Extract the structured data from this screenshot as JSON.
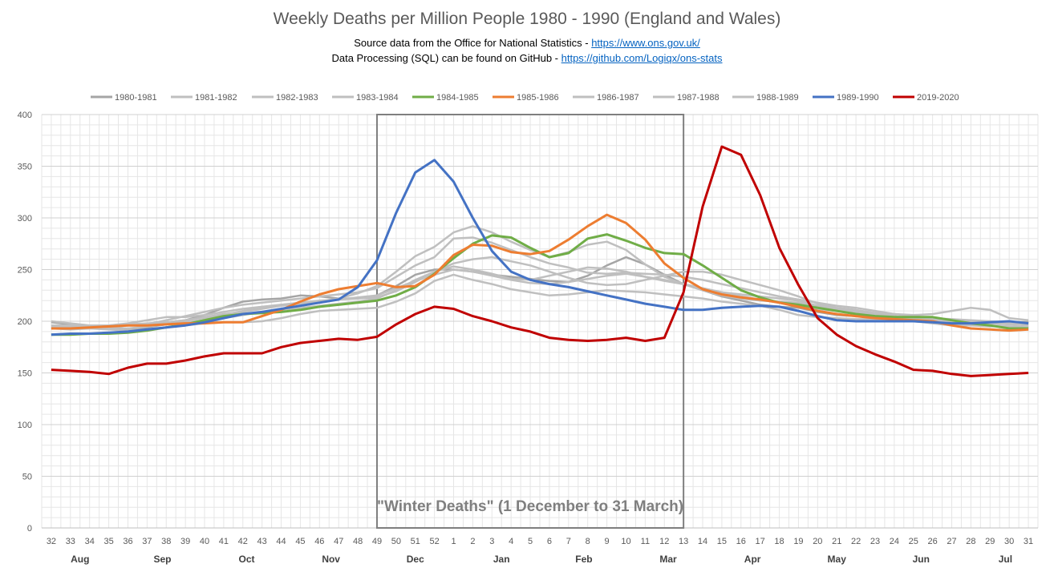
{
  "chart_data": {
    "type": "line",
    "title": "Weekly Deaths per Million People 1980 - 1990 (England and Wales)",
    "subtitle_lines": [
      {
        "text": "Source data from the Office for National Statistics - ",
        "link": "https://www.ons.gov.uk/"
      },
      {
        "text": "Data Processing (SQL) can be found on GitHub - ",
        "link": "https://github.com/Logiqx/ons-stats"
      }
    ],
    "x": [
      32,
      33,
      34,
      35,
      36,
      37,
      38,
      39,
      40,
      41,
      42,
      43,
      44,
      45,
      46,
      47,
      48,
      49,
      50,
      51,
      52,
      1,
      2,
      3,
      4,
      5,
      6,
      7,
      8,
      9,
      10,
      11,
      12,
      13,
      14,
      15,
      16,
      17,
      18,
      19,
      20,
      21,
      22,
      23,
      24,
      25,
      26,
      27,
      28,
      29,
      30,
      31
    ],
    "months": [
      {
        "label": "Aug",
        "at": 33.5
      },
      {
        "label": "Sep",
        "at": 37.8
      },
      {
        "label": "Oct",
        "at": 42.2
      },
      {
        "label": "Nov",
        "at": 46.6
      },
      {
        "label": "Dec",
        "at": 51.0
      },
      {
        "label": "Jan",
        "at": 55.5
      },
      {
        "label": "Feb",
        "at": 59.8
      },
      {
        "label": "Mar",
        "at": 64.2
      },
      {
        "label": "Apr",
        "at": 68.6
      },
      {
        "label": "May",
        "at": 73.0
      },
      {
        "label": "Jun",
        "at": 77.4
      },
      {
        "label": "Jul",
        "at": 81.8
      }
    ],
    "ylim": [
      0,
      400
    ],
    "yticks": [
      0,
      50,
      100,
      150,
      200,
      250,
      300,
      350,
      400
    ],
    "grid": true,
    "legend_position": "top",
    "annotation": {
      "text": "\"Winter Deaths\" (1 December to 31 March)",
      "from_week": 49,
      "to_week": 13
    },
    "series": [
      {
        "name": "1980-1981",
        "color": "#a5a5a5",
        "values": [
          199,
          197,
          195,
          193,
          192,
          194,
          197,
          201,
          206,
          213,
          219,
          221,
          222,
          225,
          224,
          222,
          222,
          225,
          234,
          245,
          250,
          250,
          248,
          245,
          243,
          241,
          239,
          238,
          244,
          254,
          262,
          255,
          245,
          236,
          230,
          224,
          220,
          216,
          214,
          213,
          209,
          206,
          205,
          204,
          203,
          203,
          202,
          201,
          200,
          199,
          199,
          199
        ]
      },
      {
        "name": "1981-1982",
        "color": "#bfbfbf",
        "values": [
          193,
          192,
          193,
          194,
          196,
          197,
          201,
          205,
          209,
          213,
          216,
          218,
          220,
          222,
          224,
          226,
          228,
          232,
          243,
          254,
          262,
          280,
          281,
          276,
          269,
          262,
          256,
          252,
          247,
          246,
          247,
          246,
          245,
          243,
          240,
          236,
          232,
          228,
          224,
          221,
          218,
          215,
          213,
          210,
          207,
          205,
          203,
          202,
          201,
          200,
          199,
          198
        ]
      },
      {
        "name": "1982-1983",
        "color": "#bfbfbf",
        "values": [
          196,
          195,
          195,
          196,
          197,
          198,
          199,
          201,
          203,
          206,
          210,
          213,
          216,
          218,
          220,
          221,
          223,
          225,
          232,
          239,
          245,
          250,
          248,
          244,
          240,
          237,
          236,
          238,
          241,
          244,
          246,
          243,
          240,
          236,
          232,
          228,
          226,
          224,
          222,
          220,
          215,
          212,
          209,
          207,
          205,
          203,
          202,
          200,
          199,
          199,
          198,
          198
        ]
      },
      {
        "name": "1983-1984",
        "color": "#bfbfbf",
        "values": [
          200,
          198,
          196,
          194,
          193,
          195,
          197,
          199,
          201,
          203,
          206,
          209,
          211,
          213,
          215,
          217,
          219,
          222,
          230,
          240,
          248,
          253,
          250,
          246,
          241,
          240,
          244,
          248,
          252,
          251,
          248,
          243,
          239,
          236,
          232,
          228,
          224,
          221,
          218,
          215,
          212,
          210,
          208,
          206,
          204,
          202,
          201,
          200,
          199,
          198,
          197,
          196
        ]
      },
      {
        "name": "1984-1985",
        "color": "#70ad47",
        "values": [
          187,
          187,
          188,
          188,
          189,
          191,
          194,
          197,
          201,
          205,
          207,
          208,
          209,
          211,
          214,
          216,
          218,
          220,
          225,
          233,
          246,
          261,
          275,
          283,
          281,
          271,
          262,
          266,
          280,
          284,
          278,
          271,
          266,
          265,
          254,
          242,
          230,
          223,
          218,
          216,
          213,
          210,
          207,
          205,
          204,
          204,
          204,
          201,
          198,
          196,
          193,
          193
        ]
      },
      {
        "name": "1985-1986",
        "color": "#ed7d31",
        "values": [
          193,
          193,
          194,
          195,
          196,
          196,
          197,
          198,
          198,
          199,
          199,
          205,
          211,
          219,
          226,
          231,
          234,
          237,
          233,
          234,
          245,
          264,
          274,
          273,
          267,
          265,
          268,
          279,
          292,
          303,
          295,
          279,
          256,
          242,
          231,
          226,
          223,
          221,
          218,
          214,
          210,
          207,
          205,
          203,
          202,
          201,
          200,
          196,
          193,
          192,
          191,
          192
        ]
      },
      {
        "name": "1986-1987",
        "color": "#bfbfbf",
        "values": [
          193,
          194,
          195,
          195,
          196,
          197,
          199,
          201,
          204,
          207,
          209,
          212,
          215,
          217,
          219,
          222,
          227,
          234,
          248,
          263,
          272,
          286,
          292,
          286,
          277,
          269,
          262,
          267,
          274,
          277,
          269,
          255,
          243,
          236,
          230,
          225,
          222,
          220,
          219,
          218,
          215,
          212,
          210,
          208,
          207,
          206,
          207,
          210,
          213,
          211,
          203,
          201
        ]
      },
      {
        "name": "1987-1988",
        "color": "#bfbfbf",
        "values": [
          194,
          194,
          193,
          192,
          191,
          192,
          194,
          196,
          198,
          199,
          199,
          200,
          203,
          207,
          210,
          211,
          212,
          213,
          219,
          227,
          239,
          245,
          240,
          236,
          231,
          228,
          225,
          226,
          228,
          230,
          229,
          228,
          226,
          224,
          222,
          219,
          217,
          215,
          211,
          206,
          204,
          203,
          202,
          202,
          201,
          200,
          198,
          196,
          196,
          195,
          195,
          194
        ]
      },
      {
        "name": "1988-1989",
        "color": "#bfbfbf",
        "values": [
          196,
          196,
          196,
          196,
          198,
          201,
          204,
          204,
          206,
          209,
          212,
          214,
          216,
          217,
          219,
          221,
          222,
          223,
          229,
          238,
          248,
          256,
          260,
          262,
          258,
          254,
          248,
          242,
          237,
          235,
          236,
          240,
          244,
          248,
          248,
          245,
          240,
          235,
          230,
          224,
          217,
          213,
          211,
          208,
          205,
          202,
          200,
          198,
          197,
          196,
          195,
          194
        ]
      },
      {
        "name": "1989-1990",
        "color": "#4472c4",
        "values": [
          187,
          188,
          188,
          189,
          190,
          192,
          194,
          196,
          199,
          203,
          207,
          209,
          212,
          215,
          218,
          221,
          233,
          259,
          305,
          344,
          356,
          335,
          300,
          268,
          248,
          240,
          236,
          233,
          229,
          225,
          221,
          217,
          214,
          211,
          211,
          213,
          214,
          215,
          214,
          210,
          205,
          201,
          200,
          200,
          200,
          200,
          199,
          198,
          198,
          199,
          200,
          198
        ]
      },
      {
        "name": "2019-2020",
        "color": "#c00000",
        "values": [
          153,
          152,
          151,
          149,
          155,
          159,
          159,
          162,
          166,
          169,
          169,
          169,
          175,
          179,
          181,
          183,
          182,
          185,
          197,
          207,
          214,
          212,
          205,
          200,
          194,
          190,
          184,
          182,
          181,
          182,
          184,
          181,
          184,
          228,
          311,
          369,
          361,
          322,
          271,
          235,
          203,
          187,
          176,
          168,
          161,
          153,
          152,
          149,
          147,
          148,
          149,
          150
        ]
      }
    ]
  }
}
